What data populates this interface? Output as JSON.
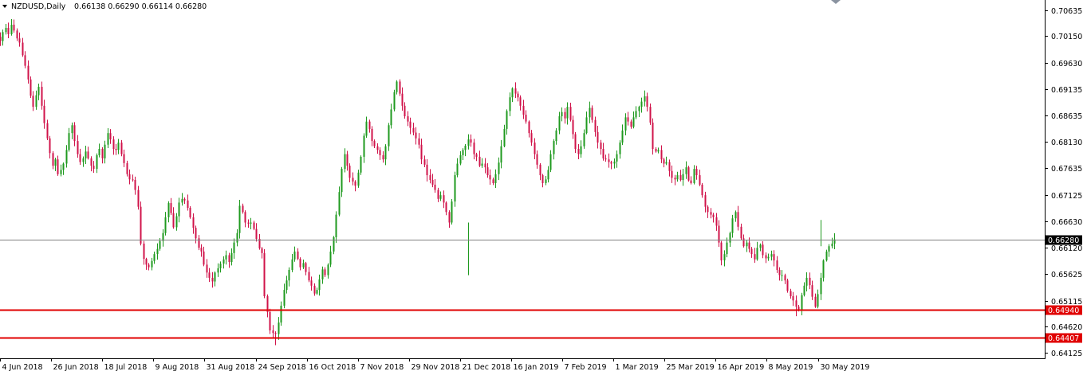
{
  "header": {
    "symbol_timeframe": "NZDUSD,Daily",
    "ohlc": "0.66138 0.66290 0.66114 0.66280"
  },
  "chart_data": {
    "type": "candlestick",
    "symbol": "NZDUSD",
    "timeframe": "Daily",
    "colors": {
      "up": "#1f9a1f",
      "down": "#d0134a",
      "level_line": "#e00000",
      "price_line": "#808080",
      "label_bg": "#000000",
      "level_label_bg": "#e00000"
    },
    "y_ticks": [
      "0.70635",
      "0.70150",
      "0.69630",
      "0.69135",
      "0.68635",
      "0.68130",
      "0.67635",
      "0.67125",
      "0.66630",
      "0.66120",
      "0.65625",
      "0.65115",
      "0.64620",
      "0.64125"
    ],
    "x_ticks": [
      "4 Jun 2018",
      "26 Jun 2018",
      "18 Jul 2018",
      "9 Aug 2018",
      "31 Aug 2018",
      "24 Sep 2018",
      "16 Oct 2018",
      "7 Nov 2018",
      "29 Nov 2018",
      "21 Dec 2018",
      "16 Jan 2019",
      "7 Feb 2019",
      "1 Mar 2019",
      "25 Mar 2019",
      "16 Apr 2019",
      "8 May 2019",
      "30 May 2019"
    ],
    "ylim": [
      0.6402,
      0.7083
    ],
    "current_price": {
      "value": 0.6628,
      "label": "0.66280"
    },
    "levels": [
      {
        "value": 0.6494,
        "label": "0.64940"
      },
      {
        "value": 0.64407,
        "label": "0.64407"
      }
    ],
    "closes": [
      0.7005,
      0.7022,
      0.703,
      0.7018,
      0.7036,
      0.7025,
      0.701,
      0.7002,
      0.6978,
      0.6958,
      0.6932,
      0.6901,
      0.688,
      0.6902,
      0.6918,
      0.6882,
      0.6849,
      0.682,
      0.6792,
      0.6768,
      0.678,
      0.6752,
      0.676,
      0.6772,
      0.6798,
      0.683,
      0.6845,
      0.6815,
      0.679,
      0.6775,
      0.6782,
      0.6795,
      0.6782,
      0.6768,
      0.6762,
      0.6788,
      0.68,
      0.6782,
      0.6808,
      0.683,
      0.6818,
      0.68,
      0.6798,
      0.6812,
      0.679,
      0.6773,
      0.6752,
      0.6742,
      0.6741,
      0.6722,
      0.669,
      0.662,
      0.6591,
      0.658,
      0.6575,
      0.6587,
      0.66,
      0.661,
      0.6625,
      0.664,
      0.667,
      0.6697,
      0.6678,
      0.6651,
      0.6672,
      0.6698,
      0.6705,
      0.6702,
      0.6688,
      0.667,
      0.665,
      0.663,
      0.6612,
      0.6605,
      0.658,
      0.6565,
      0.6555,
      0.6548,
      0.6565,
      0.6573,
      0.6582,
      0.659,
      0.6598,
      0.6585,
      0.6602,
      0.6622,
      0.664,
      0.6692,
      0.668,
      0.666,
      0.6658,
      0.666,
      0.6648,
      0.6629,
      0.6611,
      0.6602,
      0.652,
      0.649,
      0.6455,
      0.645,
      0.6448,
      0.647,
      0.6502,
      0.6532,
      0.655,
      0.657,
      0.659,
      0.6605,
      0.6591,
      0.6575,
      0.6583,
      0.6566,
      0.655,
      0.654,
      0.6525,
      0.6532,
      0.6552,
      0.6571,
      0.656,
      0.658,
      0.6605,
      0.6632,
      0.6675,
      0.6718,
      0.6762,
      0.679,
      0.6768,
      0.6745,
      0.6738,
      0.673,
      0.6755,
      0.6785,
      0.6825,
      0.6852,
      0.6838,
      0.6815,
      0.6805,
      0.6798,
      0.6788,
      0.678,
      0.6805,
      0.6845,
      0.6875,
      0.6908,
      0.6928,
      0.6905,
      0.6882,
      0.6862,
      0.6852,
      0.684,
      0.6831,
      0.682,
      0.6808,
      0.678,
      0.677,
      0.675,
      0.6741,
      0.6732,
      0.6722,
      0.6705,
      0.6712,
      0.6698,
      0.668,
      0.666,
      0.67,
      0.675,
      0.6772,
      0.6788,
      0.6798,
      0.6806,
      0.6818,
      0.6812,
      0.679,
      0.6785,
      0.6768,
      0.6772,
      0.6765,
      0.675,
      0.6742,
      0.6735,
      0.6752,
      0.6774,
      0.6805,
      0.6838,
      0.6872,
      0.6898,
      0.6915,
      0.6905,
      0.6898,
      0.6882,
      0.6865,
      0.6852,
      0.683,
      0.6812,
      0.679,
      0.677,
      0.675,
      0.6735,
      0.6742,
      0.676,
      0.679,
      0.6815,
      0.6835,
      0.6862,
      0.687,
      0.6858,
      0.688,
      0.6855,
      0.6828,
      0.68,
      0.679,
      0.6805,
      0.683,
      0.686,
      0.6878,
      0.6855,
      0.6832,
      0.6812,
      0.68,
      0.6782,
      0.678,
      0.6775,
      0.6772,
      0.6776,
      0.679,
      0.6812,
      0.6835,
      0.686,
      0.6852,
      0.6842,
      0.686,
      0.6872,
      0.688,
      0.689,
      0.69,
      0.688,
      0.685,
      0.68,
      0.6795,
      0.6798,
      0.678,
      0.6772,
      0.6775,
      0.6758,
      0.6745,
      0.6742,
      0.675,
      0.6741,
      0.6752,
      0.6765,
      0.674,
      0.6735,
      0.6762,
      0.675,
      0.6732,
      0.6712,
      0.669,
      0.668,
      0.6675,
      0.667,
      0.6654,
      0.6622,
      0.6588,
      0.66,
      0.6622,
      0.664,
      0.6668,
      0.668,
      0.6652,
      0.663,
      0.6615,
      0.6622,
      0.661,
      0.66,
      0.659,
      0.6612,
      0.6618,
      0.6598,
      0.6592,
      0.6595,
      0.66,
      0.6588,
      0.657,
      0.656,
      0.656,
      0.655,
      0.653,
      0.652,
      0.6512,
      0.65,
      0.6495,
      0.6522,
      0.654,
      0.6555,
      0.6541,
      0.6519,
      0.65,
      0.6524,
      0.6555,
      0.6588,
      0.6605,
      0.6615,
      0.662,
      0.6628
    ],
    "extremes": {
      "low_near_sep_2018": 0.6427,
      "dec_2018_spike_low": 0.656,
      "may_2019_low": 0.6482,
      "jun_2019_spike_high": 0.6665
    }
  }
}
